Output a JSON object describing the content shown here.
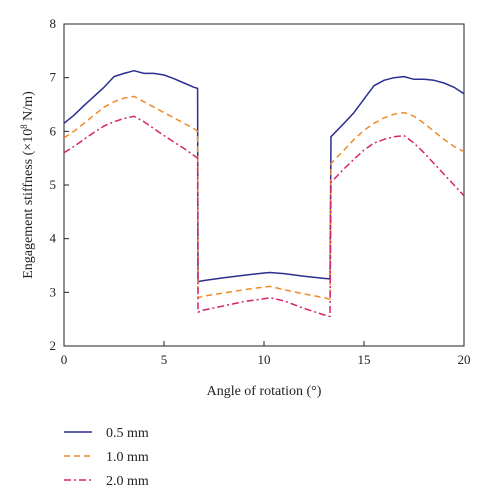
{
  "chart_data": {
    "type": "line",
    "title": "",
    "xlabel": "Angle of rotation (°)",
    "ylabel_main": "Engagement stiffness (×10",
    "ylabel_sup": "8",
    "ylabel_unit": " N/m)",
    "xlim": [
      0,
      20
    ],
    "ylim": [
      2,
      8
    ],
    "xticks": [
      0,
      5,
      10,
      15,
      20
    ],
    "yticks": [
      2,
      3,
      4,
      5,
      6,
      7,
      8
    ],
    "grid": false,
    "legend_position": "bottom-left, below plot",
    "series": [
      {
        "name": "0.5 mm",
        "color": "#2b2f8f",
        "dash": "solid",
        "x": [
          0,
          0.5,
          1,
          1.5,
          2,
          2.5,
          3,
          3.5,
          4,
          4.5,
          5,
          5.5,
          6,
          6.5,
          6.68,
          6.7,
          7,
          8,
          9,
          10,
          10.3,
          11,
          12,
          13,
          13.3,
          13.35,
          14,
          14.5,
          15,
          15.5,
          16,
          16.5,
          17,
          17.5,
          18,
          18.5,
          19,
          19.5,
          20
        ],
        "y": [
          6.15,
          6.3,
          6.48,
          6.65,
          6.82,
          7.02,
          7.08,
          7.13,
          7.08,
          7.08,
          7.05,
          6.98,
          6.9,
          6.82,
          6.8,
          3.2,
          3.22,
          3.27,
          3.32,
          3.36,
          3.37,
          3.35,
          3.3,
          3.26,
          3.25,
          5.9,
          6.15,
          6.35,
          6.6,
          6.85,
          6.95,
          7.0,
          7.02,
          6.97,
          6.97,
          6.95,
          6.9,
          6.82,
          6.7
        ]
      },
      {
        "name": "1.0 mm",
        "color": "#f08a28",
        "dash": "dashed",
        "x": [
          0,
          0.5,
          1,
          1.5,
          2,
          2.5,
          3,
          3.5,
          4,
          4.5,
          5,
          5.5,
          6,
          6.5,
          6.68,
          6.7,
          7,
          8,
          9,
          10,
          10.3,
          11,
          12,
          13,
          13.3,
          13.35,
          14,
          14.5,
          15,
          15.5,
          16,
          16.5,
          17,
          17.5,
          18,
          18.5,
          19,
          19.5,
          20
        ],
        "y": [
          5.88,
          6.0,
          6.15,
          6.3,
          6.45,
          6.55,
          6.62,
          6.65,
          6.55,
          6.45,
          6.35,
          6.25,
          6.15,
          6.05,
          6.0,
          2.9,
          2.93,
          2.99,
          3.05,
          3.1,
          3.11,
          3.05,
          2.97,
          2.9,
          2.87,
          5.4,
          5.65,
          5.85,
          6.02,
          6.15,
          6.25,
          6.32,
          6.35,
          6.28,
          6.15,
          6.0,
          5.85,
          5.72,
          5.62
        ]
      },
      {
        "name": "2.0 mm",
        "color": "#d6246e",
        "dash": "dashdot",
        "x": [
          0,
          0.5,
          1,
          1.5,
          2,
          2.5,
          3,
          3.5,
          4,
          4.5,
          5,
          5.5,
          6,
          6.5,
          6.68,
          6.7,
          7,
          8,
          9,
          10,
          10.3,
          11,
          12,
          13,
          13.3,
          13.35,
          14,
          14.5,
          15,
          15.5,
          16,
          16.5,
          17,
          17.5,
          18,
          18.5,
          19,
          19.5,
          20
        ],
        "y": [
          5.6,
          5.72,
          5.85,
          5.98,
          6.1,
          6.18,
          6.24,
          6.28,
          6.18,
          6.05,
          5.92,
          5.8,
          5.68,
          5.55,
          5.5,
          2.63,
          2.67,
          2.75,
          2.83,
          2.88,
          2.9,
          2.84,
          2.7,
          2.58,
          2.55,
          5.05,
          5.3,
          5.48,
          5.65,
          5.78,
          5.85,
          5.9,
          5.92,
          5.78,
          5.6,
          5.4,
          5.2,
          5.0,
          4.8
        ]
      }
    ]
  }
}
